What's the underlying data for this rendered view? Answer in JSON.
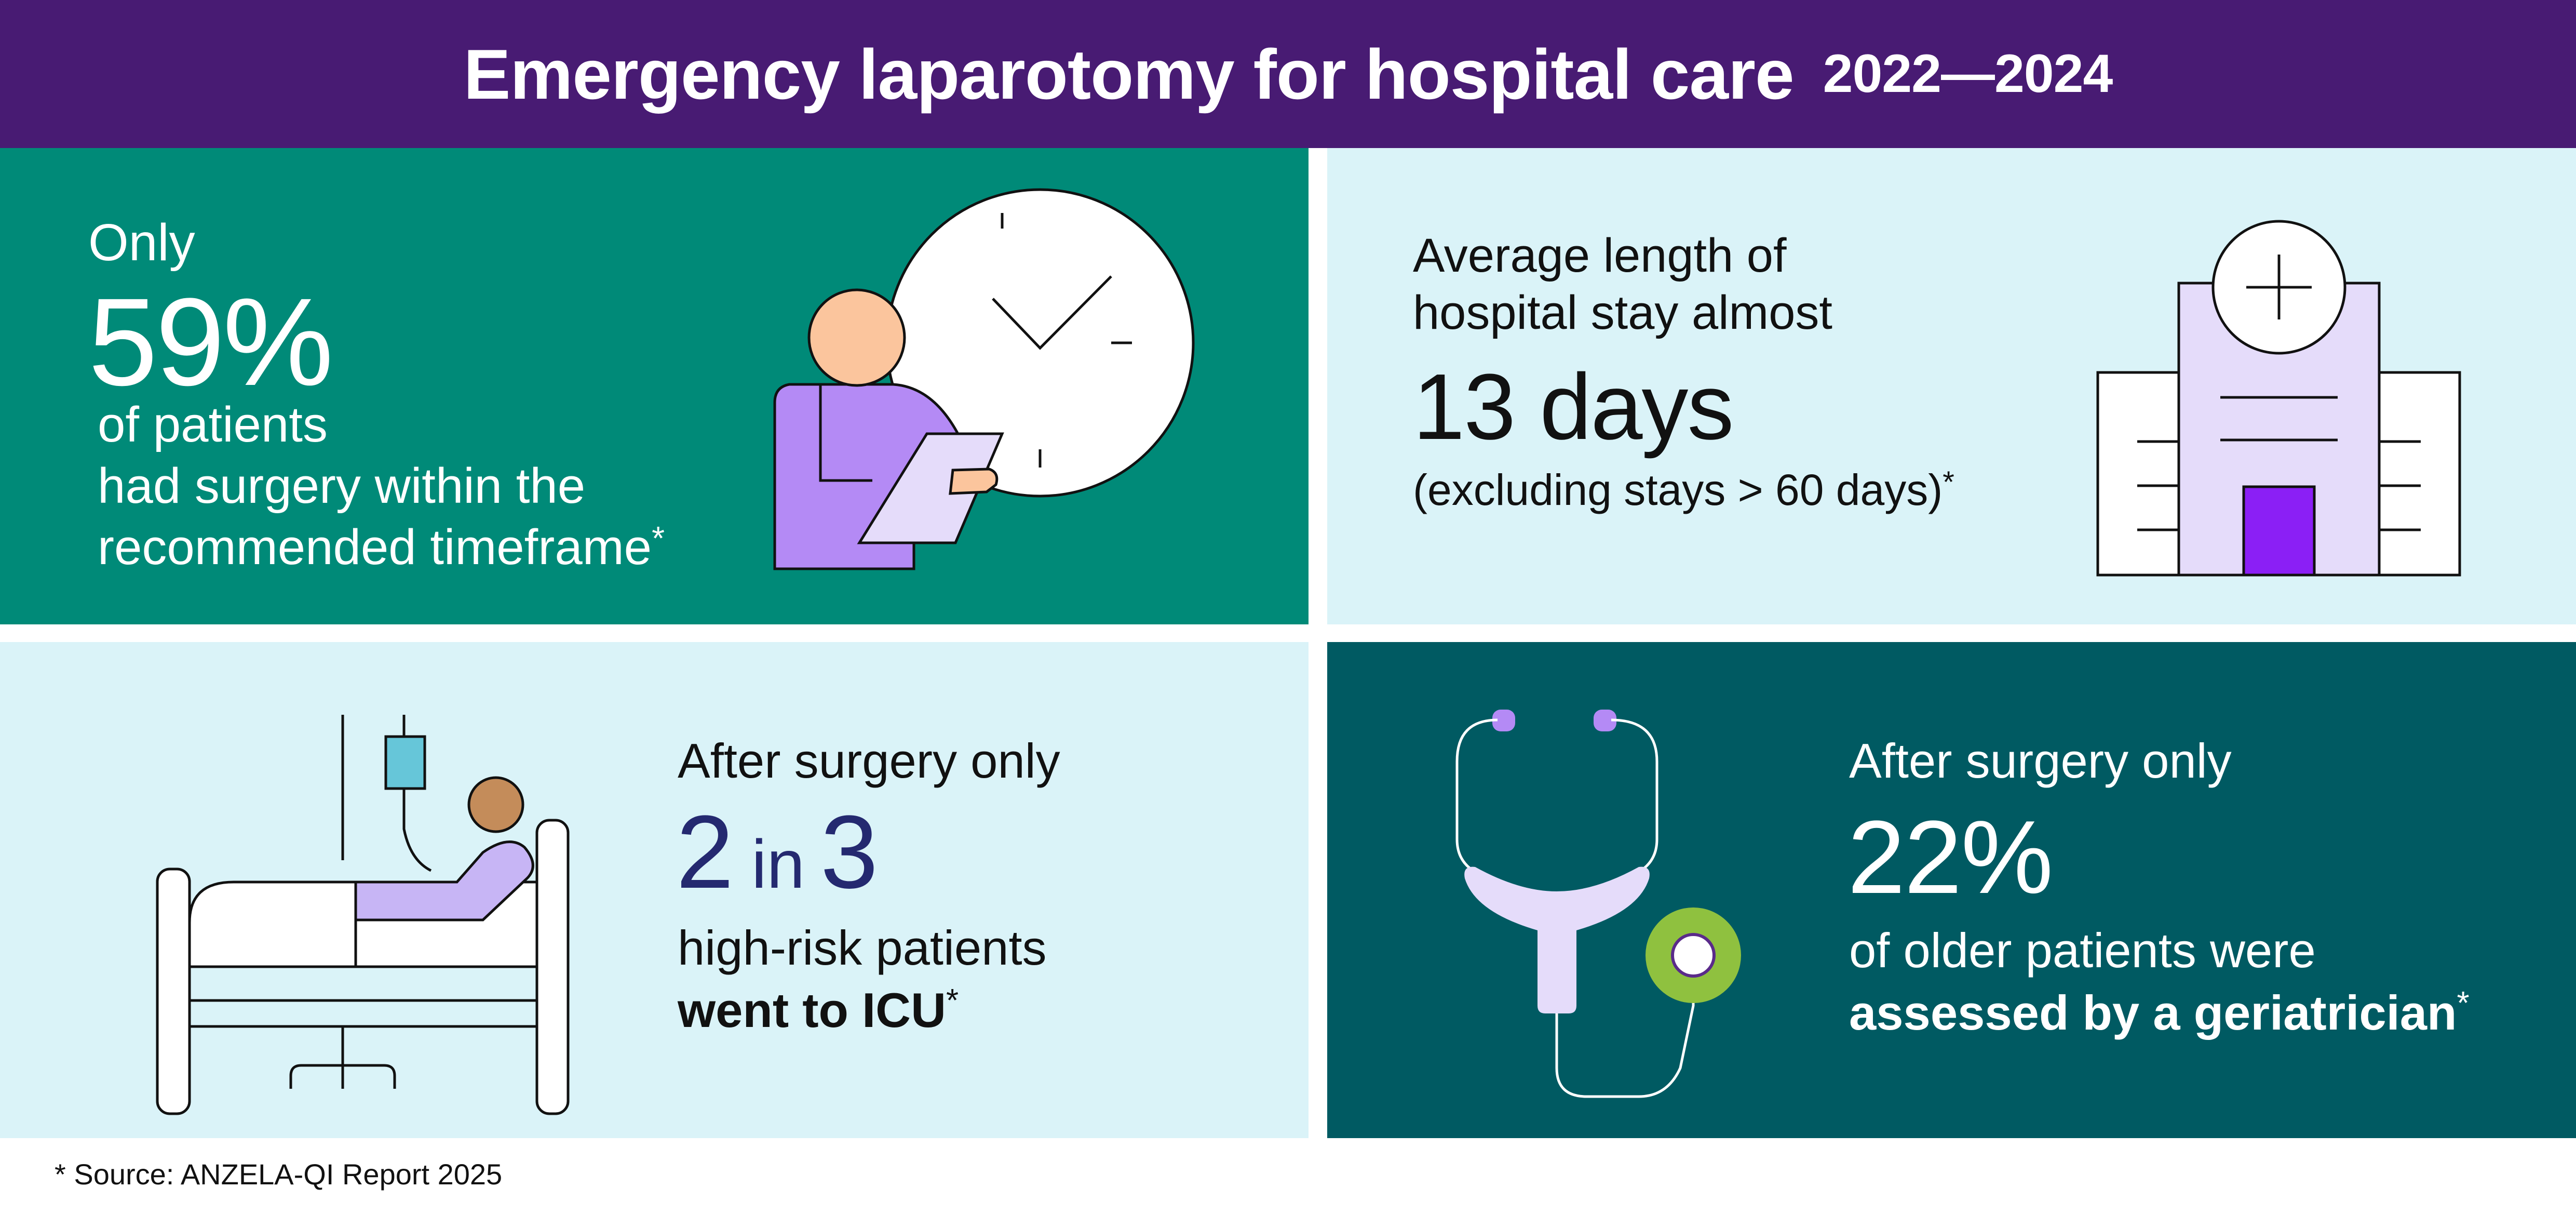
{
  "header": {
    "title": "Emergency laparotomy for hospital care",
    "years": "2022—2024"
  },
  "colors": {
    "header_bg": "#481b73",
    "teal": "#008a78",
    "light_blue": "#daf3f8",
    "dark_teal": "#005a62",
    "purple_accent": "#b48af5",
    "lavender": "#e5dcfa",
    "violet": "#8b1ff5",
    "green_accent": "#8fc13f",
    "navy_text": "#242970"
  },
  "panels": {
    "surgery_timing": {
      "lead": "Only",
      "stat": "59%",
      "line1": "of patients",
      "line2": "had surgery within the",
      "line3": "recommended timeframe",
      "mark": "*"
    },
    "length_of_stay": {
      "line1": "Average length of",
      "line2": "hospital stay almost",
      "stat": "13 days",
      "note": "(excluding stays > 60 days)",
      "mark": "*"
    },
    "icu": {
      "lead": "After surgery only",
      "stat_a": "2",
      "stat_in": "in",
      "stat_b": "3",
      "line1": "high-risk patients",
      "line2": "went to ICU",
      "mark": "*"
    },
    "geriatrician": {
      "lead": "After surgery only",
      "stat": "22%",
      "line1": "of older patients were",
      "line2": "assessed by a geriatrician",
      "mark": "*"
    }
  },
  "icons": [
    "person-with-clock-icon",
    "hospital-building-icon",
    "patient-in-bed-icon",
    "stethoscope-icon"
  ],
  "footnote": "* Source: ANZELA-QI Report 2025"
}
